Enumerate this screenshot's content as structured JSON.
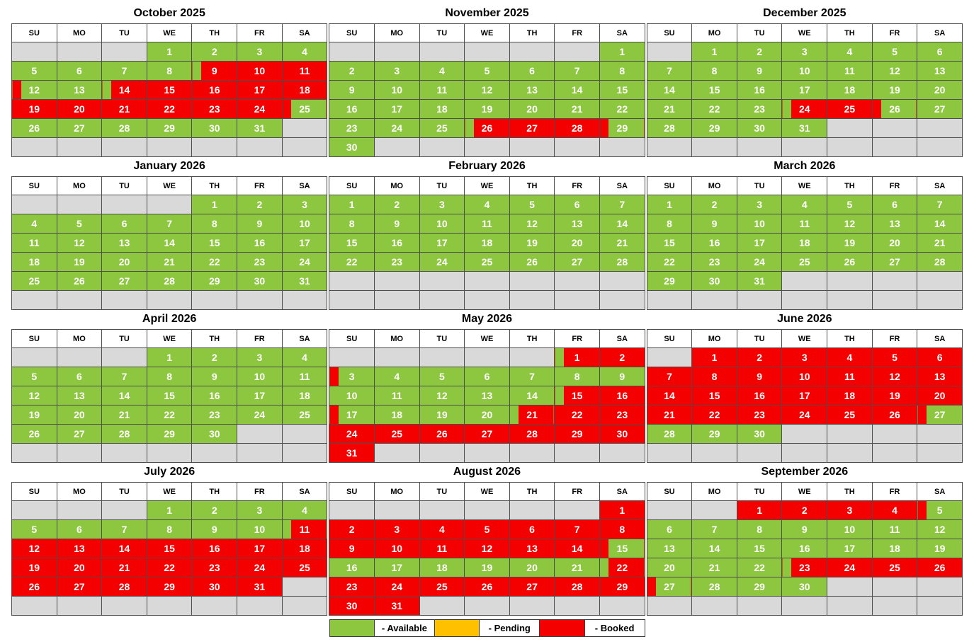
{
  "colors": {
    "available": "#8dc63f",
    "pending": "#ffc000",
    "booked": "#f50000",
    "empty": "#d9d9d9"
  },
  "weekday_headers": [
    "SU",
    "MO",
    "TU",
    "WE",
    "TH",
    "FR",
    "SA"
  ],
  "status_codes": {
    "a": "available",
    "b": "booked",
    "ab": "check-in day: available morning, booked after",
    "ba": "check-out day: booked morning, available after",
    "e": "empty"
  },
  "legend": {
    "items": [
      {
        "key": "available",
        "label": "- Available"
      },
      {
        "key": "pending",
        "label": "- Pending"
      },
      {
        "key": "booked",
        "label": "- Booked"
      }
    ]
  },
  "months": [
    {
      "name": "October 2025",
      "weeks": [
        [
          "",
          "",
          "",
          "1|a",
          "2|a",
          "3|a",
          "4|a"
        ],
        [
          "5|a",
          "6|a",
          "7|a",
          "8|a",
          "9|ab",
          "10|b",
          "11|b"
        ],
        [
          "12|ba",
          "13|a",
          "14|ab",
          "15|b",
          "16|b",
          "17|b",
          "18|b"
        ],
        [
          "19|b",
          "20|b",
          "21|b",
          "22|b",
          "23|b",
          "24|b",
          "25|ba"
        ],
        [
          "26|a",
          "27|a",
          "28|a",
          "29|a",
          "30|a",
          "31|a",
          ""
        ],
        [
          "",
          "",
          "",
          "",
          "",
          "",
          ""
        ]
      ]
    },
    {
      "name": "November 2025",
      "weeks": [
        [
          "",
          "",
          "",
          "",
          "",
          "",
          "1|a"
        ],
        [
          "2|a",
          "3|a",
          "4|a",
          "5|a",
          "6|a",
          "7|a",
          "8|a"
        ],
        [
          "9|a",
          "10|a",
          "11|a",
          "12|a",
          "13|a",
          "14|a",
          "15|a"
        ],
        [
          "16|a",
          "17|a",
          "18|a",
          "19|a",
          "20|a",
          "21|a",
          "22|a"
        ],
        [
          "23|a",
          "24|a",
          "25|a",
          "26|ab",
          "27|b",
          "28|b",
          "29|ba"
        ],
        [
          "30|a",
          "",
          "",
          "",
          "",
          "",
          ""
        ]
      ]
    },
    {
      "name": "December 2025",
      "weeks": [
        [
          "",
          "1|a",
          "2|a",
          "3|a",
          "4|a",
          "5|a",
          "6|a"
        ],
        [
          "7|a",
          "8|a",
          "9|a",
          "10|a",
          "11|a",
          "12|a",
          "13|a"
        ],
        [
          "14|a",
          "15|a",
          "16|a",
          "17|a",
          "18|a",
          "19|a",
          "20|a"
        ],
        [
          "21|a",
          "22|a",
          "23|a",
          "24|ab",
          "25|b",
          "26|ba",
          "27|a"
        ],
        [
          "28|a",
          "29|a",
          "30|a",
          "31|a",
          "",
          "",
          ""
        ],
        [
          "",
          "",
          "",
          "",
          "",
          "",
          ""
        ]
      ]
    },
    {
      "name": "January 2026",
      "weeks": [
        [
          "",
          "",
          "",
          "",
          "1|a",
          "2|a",
          "3|a"
        ],
        [
          "4|a",
          "5|a",
          "6|a",
          "7|a",
          "8|a",
          "9|a",
          "10|a"
        ],
        [
          "11|a",
          "12|a",
          "13|a",
          "14|a",
          "15|a",
          "16|a",
          "17|a"
        ],
        [
          "18|a",
          "19|a",
          "20|a",
          "21|a",
          "22|a",
          "23|a",
          "24|a"
        ],
        [
          "25|a",
          "26|a",
          "27|a",
          "28|a",
          "29|a",
          "30|a",
          "31|a"
        ],
        [
          "",
          "",
          "",
          "",
          "",
          "",
          ""
        ]
      ]
    },
    {
      "name": "February 2026",
      "weeks": [
        [
          "1|a",
          "2|a",
          "3|a",
          "4|a",
          "5|a",
          "6|a",
          "7|a"
        ],
        [
          "8|a",
          "9|a",
          "10|a",
          "11|a",
          "12|a",
          "13|a",
          "14|a"
        ],
        [
          "15|a",
          "16|a",
          "17|a",
          "18|a",
          "19|a",
          "20|a",
          "21|a"
        ],
        [
          "22|a",
          "23|a",
          "24|a",
          "25|a",
          "26|a",
          "27|a",
          "28|a"
        ],
        [
          "",
          "",
          "",
          "",
          "",
          "",
          ""
        ],
        [
          "",
          "",
          "",
          "",
          "",
          "",
          ""
        ]
      ]
    },
    {
      "name": "March 2026",
      "weeks": [
        [
          "1|a",
          "2|a",
          "3|a",
          "4|a",
          "5|a",
          "6|a",
          "7|a"
        ],
        [
          "8|a",
          "9|a",
          "10|a",
          "11|a",
          "12|a",
          "13|a",
          "14|a"
        ],
        [
          "15|a",
          "16|a",
          "17|a",
          "18|a",
          "19|a",
          "20|a",
          "21|a"
        ],
        [
          "22|a",
          "23|a",
          "24|a",
          "25|a",
          "26|a",
          "27|a",
          "28|a"
        ],
        [
          "29|a",
          "30|a",
          "31|a",
          "",
          "",
          "",
          ""
        ],
        [
          "",
          "",
          "",
          "",
          "",
          "",
          ""
        ]
      ]
    },
    {
      "name": "April 2026",
      "weeks": [
        [
          "",
          "",
          "",
          "1|a",
          "2|a",
          "3|a",
          "4|a"
        ],
        [
          "5|a",
          "6|a",
          "7|a",
          "8|a",
          "9|a",
          "10|a",
          "11|a"
        ],
        [
          "12|a",
          "13|a",
          "14|a",
          "15|a",
          "16|a",
          "17|a",
          "18|a"
        ],
        [
          "19|a",
          "20|a",
          "21|a",
          "22|a",
          "23|a",
          "24|a",
          "25|a"
        ],
        [
          "26|a",
          "27|a",
          "28|a",
          "29|a",
          "30|a",
          "",
          ""
        ],
        [
          "",
          "",
          "",
          "",
          "",
          "",
          ""
        ]
      ]
    },
    {
      "name": "May 2026",
      "weeks": [
        [
          "",
          "",
          "",
          "",
          "",
          "1|ab",
          "2|b"
        ],
        [
          "3|ba",
          "4|a",
          "5|a",
          "6|a",
          "7|a",
          "8|a",
          "9|a"
        ],
        [
          "10|a",
          "11|a",
          "12|a",
          "13|a",
          "14|a",
          "15|ab",
          "16|b"
        ],
        [
          "17|ba",
          "18|a",
          "19|a",
          "20|a",
          "21|ab",
          "22|b",
          "23|b"
        ],
        [
          "24|b",
          "25|b",
          "26|b",
          "27|b",
          "28|b",
          "29|b",
          "30|b"
        ],
        [
          "31|b",
          "",
          "",
          "",
          "",
          "",
          ""
        ]
      ]
    },
    {
      "name": "June 2026",
      "weeks": [
        [
          "",
          "1|b",
          "2|b",
          "3|b",
          "4|b",
          "5|b",
          "6|b"
        ],
        [
          "7|b",
          "8|b",
          "9|b",
          "10|b",
          "11|b",
          "12|b",
          "13|b"
        ],
        [
          "14|b",
          "15|b",
          "16|b",
          "17|b",
          "18|b",
          "19|b",
          "20|b"
        ],
        [
          "21|b",
          "22|b",
          "23|b",
          "24|b",
          "25|b",
          "26|b",
          "27|ba"
        ],
        [
          "28|a",
          "29|a",
          "30|a",
          "",
          "",
          "",
          ""
        ],
        [
          "",
          "",
          "",
          "",
          "",
          "",
          ""
        ]
      ]
    },
    {
      "name": "July 2026",
      "weeks": [
        [
          "",
          "",
          "",
          "1|a",
          "2|a",
          "3|a",
          "4|a"
        ],
        [
          "5|a",
          "6|a",
          "7|a",
          "8|a",
          "9|a",
          "10|a",
          "11|ab"
        ],
        [
          "12|b",
          "13|b",
          "14|b",
          "15|b",
          "16|b",
          "17|b",
          "18|b"
        ],
        [
          "19|b",
          "20|b",
          "21|b",
          "22|b",
          "23|b",
          "24|b",
          "25|b"
        ],
        [
          "26|b",
          "27|b",
          "28|b",
          "29|b",
          "30|b",
          "31|b",
          ""
        ],
        [
          "",
          "",
          "",
          "",
          "",
          "",
          ""
        ]
      ]
    },
    {
      "name": "August 2026",
      "weeks": [
        [
          "",
          "",
          "",
          "",
          "",
          "",
          "1|b"
        ],
        [
          "2|b",
          "3|b",
          "4|b",
          "5|b",
          "6|b",
          "7|b",
          "8|b"
        ],
        [
          "9|b",
          "10|b",
          "11|b",
          "12|b",
          "13|b",
          "14|b",
          "15|ba"
        ],
        [
          "16|a",
          "17|a",
          "18|a",
          "19|a",
          "20|a",
          "21|a",
          "22|ab"
        ],
        [
          "23|b",
          "24|b",
          "25|b",
          "26|b",
          "27|b",
          "28|b",
          "29|b"
        ],
        [
          "30|b",
          "31|b",
          "",
          "",
          "",
          "",
          ""
        ]
      ]
    },
    {
      "name": "September 2026",
      "weeks": [
        [
          "",
          "",
          "1|b",
          "2|b",
          "3|b",
          "4|b",
          "5|ba"
        ],
        [
          "6|a",
          "7|a",
          "8|a",
          "9|a",
          "10|a",
          "11|a",
          "12|a"
        ],
        [
          "13|a",
          "14|a",
          "15|a",
          "16|a",
          "17|a",
          "18|a",
          "19|a"
        ],
        [
          "20|a",
          "21|a",
          "22|a",
          "23|ab",
          "24|b",
          "25|b",
          "26|b"
        ],
        [
          "27|ba",
          "28|a",
          "29|a",
          "30|a",
          "",
          "",
          ""
        ],
        [
          "",
          "",
          "",
          "",
          "",
          "",
          ""
        ]
      ]
    }
  ]
}
